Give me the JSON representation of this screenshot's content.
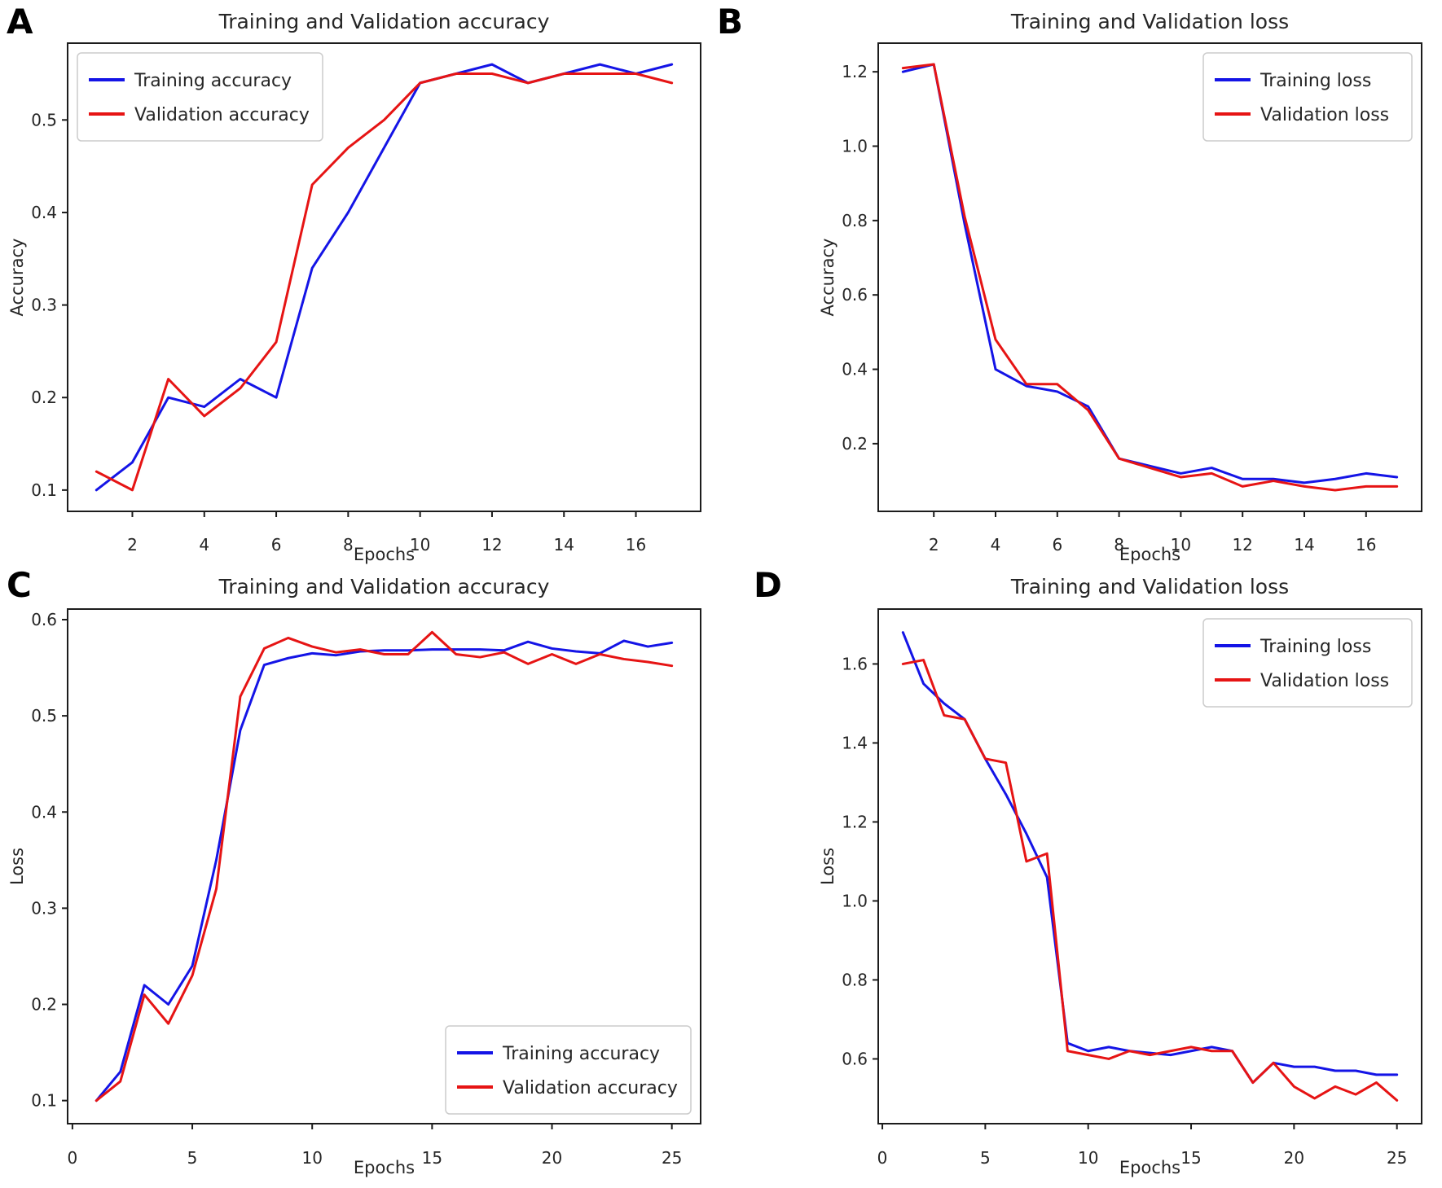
{
  "figure": {
    "colors": {
      "training_line": "#1414e6",
      "validation_line": "#e61414",
      "frame": "#1c1c1c",
      "text": "#262626",
      "background": "#ffffff",
      "legend_border": "#cccccc"
    }
  },
  "chart_data": [
    {
      "panel_letter": "A",
      "type": "line",
      "title": "Training and Validation accuracy",
      "xlabel": "Epochs",
      "ylabel": "Accuracy",
      "x": [
        1,
        2,
        3,
        4,
        5,
        6,
        7,
        8,
        9,
        10,
        11,
        12,
        13,
        14,
        15,
        16,
        17
      ],
      "xticks": [
        2,
        4,
        6,
        8,
        10,
        12,
        14,
        16
      ],
      "yticks": [
        0.1,
        0.2,
        0.3,
        0.4,
        0.5
      ],
      "xlim": [
        0.2,
        17.8
      ],
      "ylim": [
        0.077,
        0.583
      ],
      "grid": false,
      "legend_position": "top-left",
      "series": [
        {
          "name": "Training accuracy",
          "color": "#1414e6",
          "values": [
            0.1,
            0.13,
            0.2,
            0.19,
            0.22,
            0.2,
            0.34,
            0.4,
            0.47,
            0.54,
            0.55,
            0.56,
            0.54,
            0.55,
            0.56,
            0.55,
            0.56
          ]
        },
        {
          "name": "Validation accuracy",
          "color": "#e61414",
          "values": [
            0.12,
            0.1,
            0.22,
            0.18,
            0.21,
            0.26,
            0.43,
            0.47,
            0.5,
            0.54,
            0.55,
            0.55,
            0.54,
            0.55,
            0.55,
            0.55,
            0.54
          ]
        }
      ]
    },
    {
      "panel_letter": "B",
      "type": "line",
      "title": "Training and Validation loss",
      "xlabel": "Epochs",
      "ylabel": "Accuracy",
      "x": [
        1,
        2,
        3,
        4,
        5,
        6,
        7,
        8,
        9,
        10,
        11,
        12,
        13,
        14,
        15,
        16,
        17
      ],
      "xticks": [
        2,
        4,
        6,
        8,
        10,
        12,
        14,
        16
      ],
      "yticks": [
        0.2,
        0.4,
        0.6,
        0.8,
        1.0,
        1.2
      ],
      "xlim": [
        0.2,
        17.8
      ],
      "ylim": [
        0.018,
        1.277
      ],
      "grid": false,
      "legend_position": "top-right",
      "series": [
        {
          "name": "Training loss",
          "color": "#1414e6",
          "values": [
            1.2,
            1.22,
            0.79,
            0.4,
            0.355,
            0.34,
            0.3,
            0.16,
            0.14,
            0.12,
            0.135,
            0.105,
            0.105,
            0.095,
            0.105,
            0.12,
            0.11
          ]
        },
        {
          "name": "Validation loss",
          "color": "#e61414",
          "values": [
            1.21,
            1.22,
            0.81,
            0.48,
            0.36,
            0.36,
            0.29,
            0.16,
            0.135,
            0.11,
            0.12,
            0.085,
            0.1,
            0.085,
            0.075,
            0.085,
            0.085
          ]
        }
      ]
    },
    {
      "panel_letter": "C",
      "type": "line",
      "title": "Training and Validation accuracy",
      "xlabel": "Epochs",
      "ylabel": "Loss",
      "x": [
        1,
        2,
        3,
        4,
        5,
        6,
        7,
        8,
        9,
        10,
        11,
        12,
        13,
        14,
        15,
        16,
        17,
        18,
        19,
        20,
        21,
        22,
        23,
        24,
        25
      ],
      "xticks": [
        0,
        5,
        10,
        15,
        20,
        25
      ],
      "yticks": [
        0.1,
        0.2,
        0.3,
        0.4,
        0.5,
        0.6
      ],
      "xlim": [
        -0.2,
        26.2
      ],
      "ylim": [
        0.076,
        0.611
      ],
      "grid": false,
      "legend_position": "bottom-right",
      "series": [
        {
          "name": "Training accuracy",
          "color": "#1414e6",
          "values": [
            0.1,
            0.13,
            0.22,
            0.2,
            0.24,
            0.35,
            0.485,
            0.553,
            0.56,
            0.565,
            0.563,
            0.567,
            0.568,
            0.568,
            0.569,
            0.569,
            0.569,
            0.568,
            0.577,
            0.57,
            0.567,
            0.565,
            0.578,
            0.572,
            0.576
          ]
        },
        {
          "name": "Validation accuracy",
          "color": "#e61414",
          "values": [
            0.1,
            0.12,
            0.21,
            0.18,
            0.23,
            0.32,
            0.52,
            0.57,
            0.581,
            0.572,
            0.566,
            0.569,
            0.564,
            0.564,
            0.587,
            0.564,
            0.561,
            0.566,
            0.554,
            0.564,
            0.554,
            0.564,
            0.559,
            0.556,
            0.552
          ]
        }
      ]
    },
    {
      "panel_letter": "D",
      "type": "line",
      "title": "Training and Validation loss",
      "xlabel": "Epochs",
      "ylabel": "Loss",
      "x": [
        1,
        2,
        3,
        4,
        5,
        6,
        7,
        8,
        9,
        10,
        11,
        12,
        13,
        14,
        15,
        16,
        17,
        18,
        19,
        20,
        21,
        22,
        23,
        24,
        25
      ],
      "xticks": [
        0,
        5,
        10,
        15,
        20,
        25
      ],
      "yticks": [
        0.6,
        0.8,
        1.0,
        1.2,
        1.4,
        1.6
      ],
      "xlim": [
        -0.2,
        26.2
      ],
      "ylim": [
        0.436,
        1.739
      ],
      "grid": false,
      "legend_position": "top-right",
      "series": [
        {
          "name": "Training loss",
          "color": "#1414e6",
          "values": [
            1.68,
            1.55,
            1.5,
            1.46,
            1.36,
            1.27,
            1.17,
            1.06,
            0.64,
            0.62,
            0.63,
            0.62,
            0.615,
            0.61,
            0.62,
            0.63,
            0.62,
            0.54,
            0.59,
            0.58,
            0.58,
            0.57,
            0.57,
            0.56,
            0.56
          ]
        },
        {
          "name": "Validation loss",
          "color": "#e61414",
          "values": [
            1.6,
            1.61,
            1.47,
            1.46,
            1.36,
            1.35,
            1.1,
            1.12,
            0.62,
            0.61,
            0.6,
            0.62,
            0.61,
            0.62,
            0.63,
            0.62,
            0.62,
            0.54,
            0.59,
            0.53,
            0.5,
            0.53,
            0.51,
            0.54,
            0.495
          ]
        }
      ]
    }
  ]
}
